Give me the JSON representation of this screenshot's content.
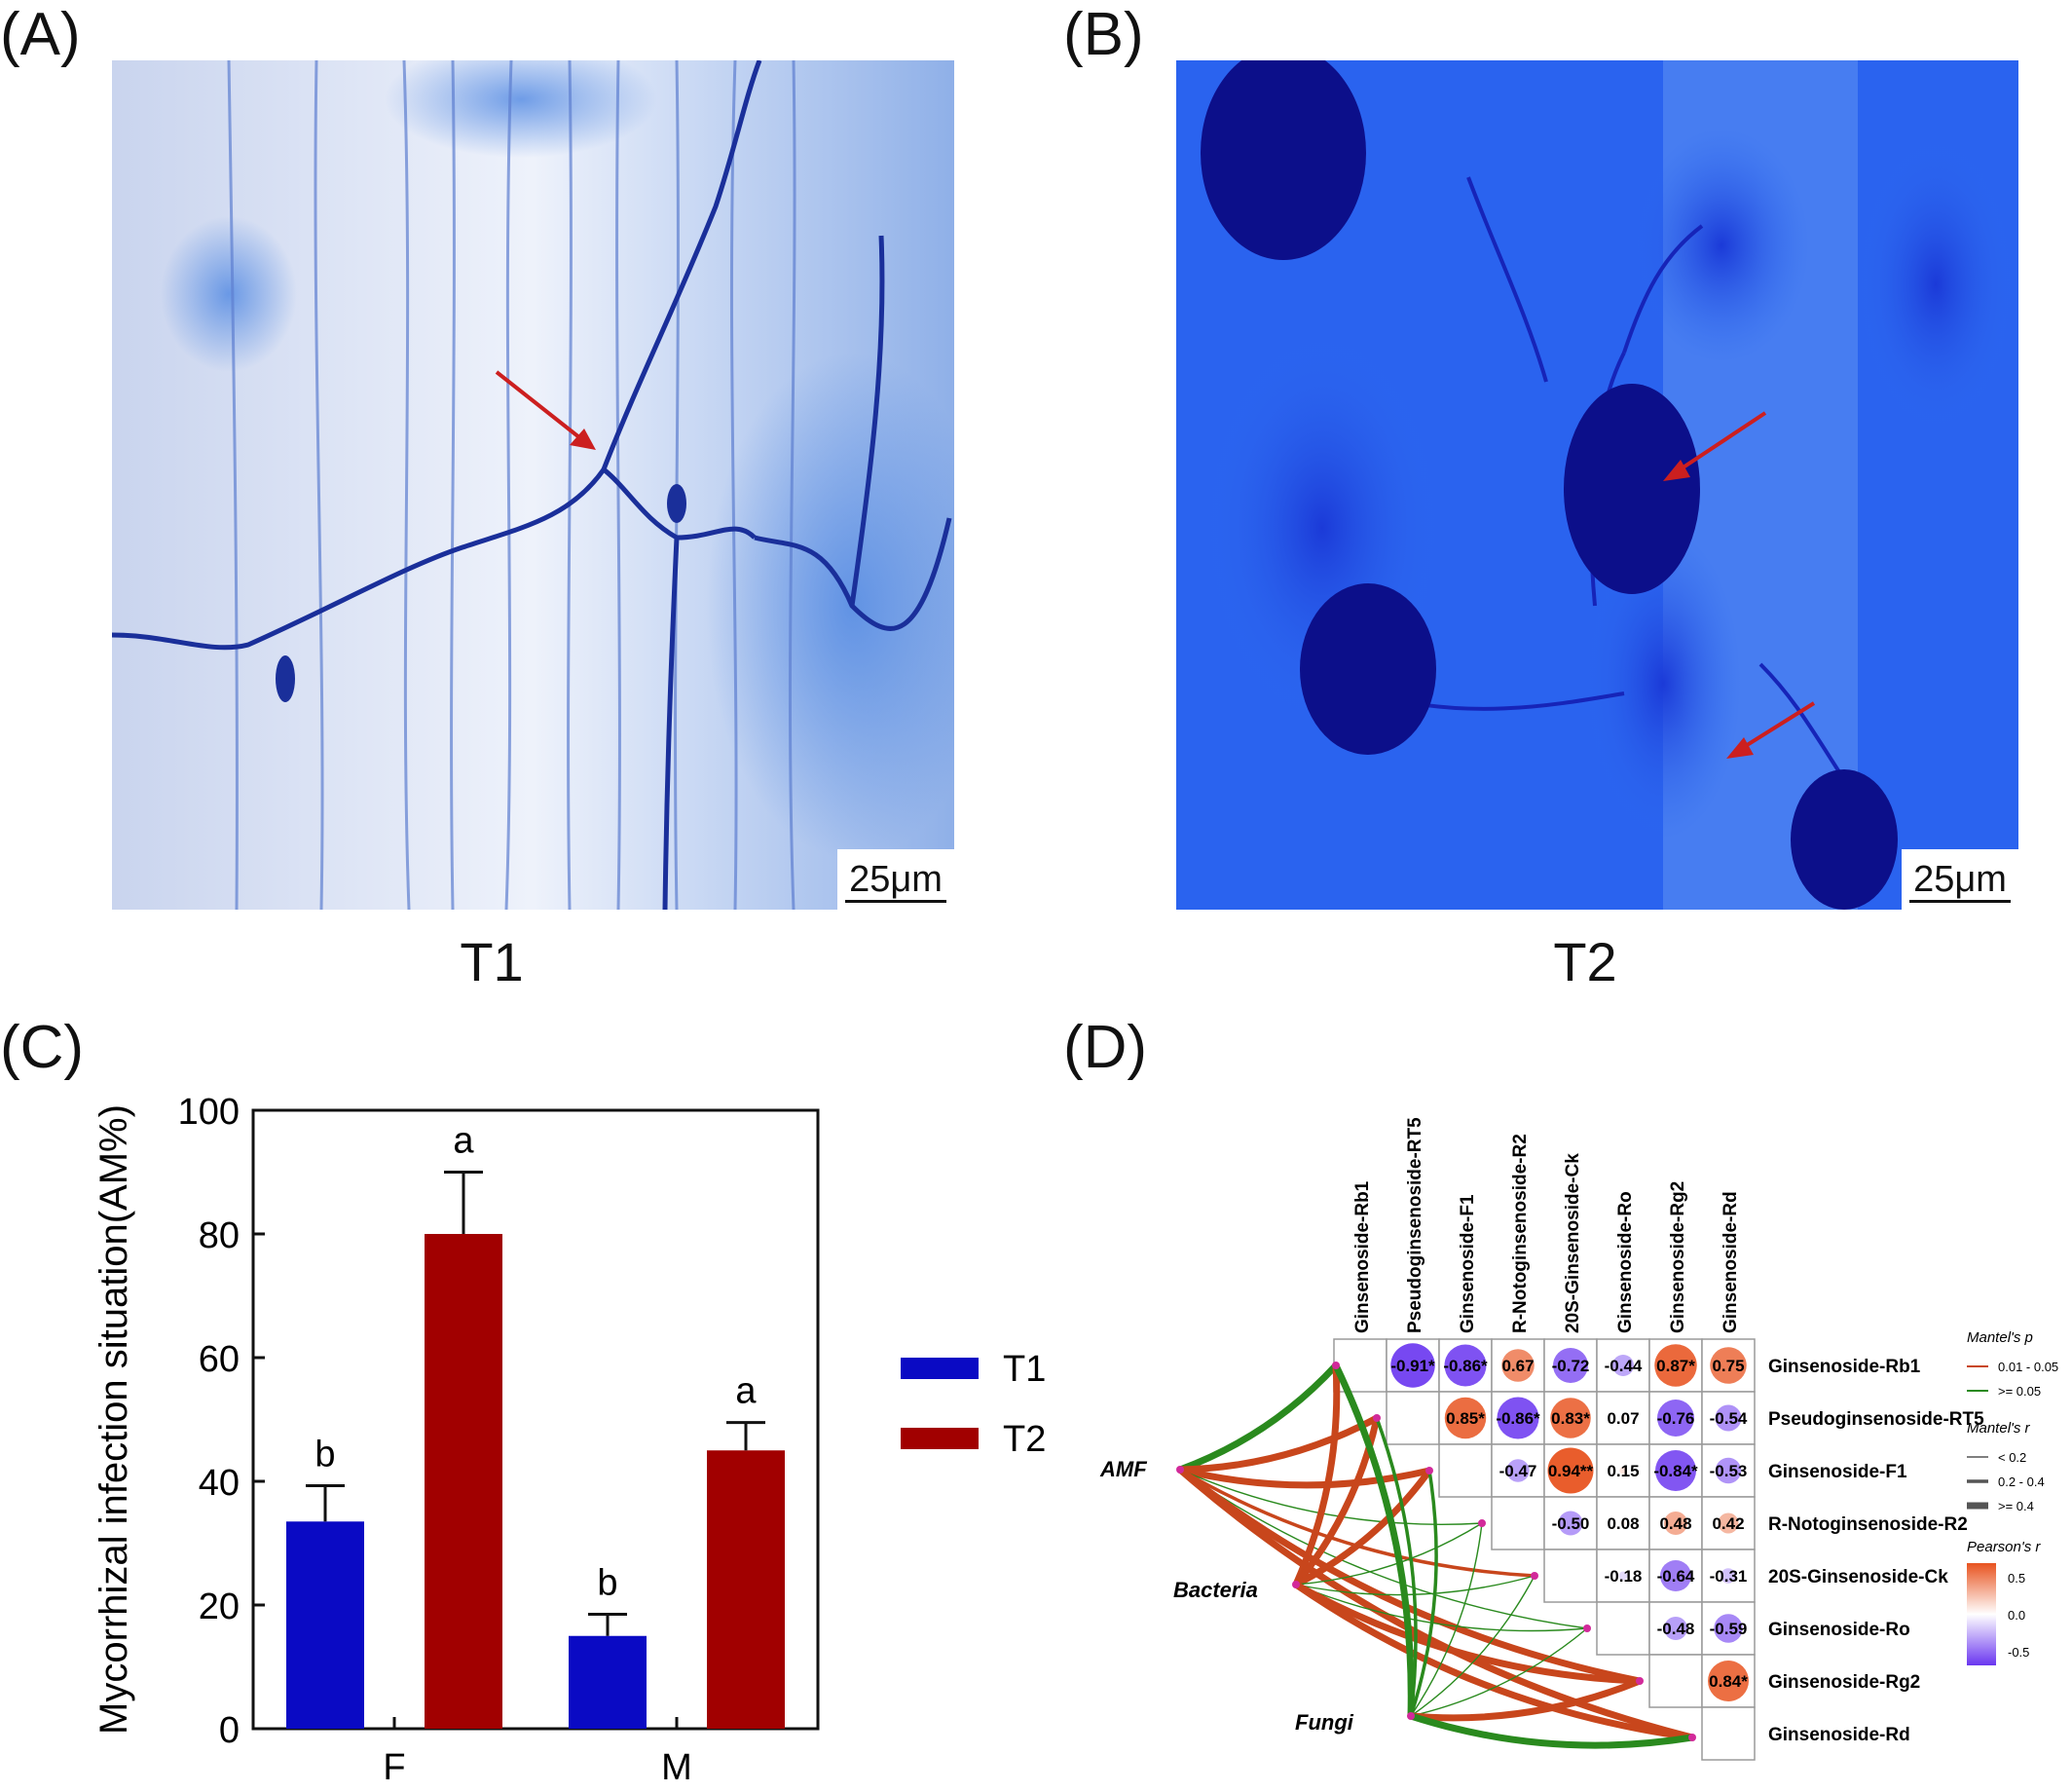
{
  "panels": {
    "a": {
      "letter": "(A)",
      "label": "T1",
      "scale": "25μm"
    },
    "b": {
      "letter": "(B)",
      "label": "T2",
      "scale": "25μm"
    },
    "c": {
      "letter": "(C)"
    },
    "d": {
      "letter": "(D)"
    }
  },
  "colors": {
    "t1": "#0a0ac4",
    "t2": "#a10000",
    "positive": "#e8531f",
    "negative": "#6a36f0",
    "mantel_sig": "#c8461c",
    "mantel_ns": "#2a8a1e"
  },
  "chart_data": [
    {
      "type": "bar",
      "categories": [
        "F",
        "M"
      ],
      "series": [
        {
          "name": "T1",
          "values": [
            33.5,
            15
          ],
          "errors": [
            5.8,
            3.5
          ],
          "letters": [
            "b",
            "b"
          ]
        },
        {
          "name": "T2",
          "values": [
            80,
            45
          ],
          "errors": [
            10,
            4.5
          ],
          "letters": [
            "a",
            "a"
          ]
        }
      ],
      "ylabel": "Mycorrhizal infection situation(AM%)",
      "ylim": [
        0,
        100
      ],
      "yticks": [
        0,
        20,
        40,
        60,
        80,
        100
      ],
      "legend": "right"
    },
    {
      "type": "heatmap",
      "variables": [
        "Ginsenoside-Rb1",
        "Pseudoginsenoside-RT5",
        "Ginsenoside-F1",
        "R-Notoginsenoside-R2",
        "20S-Ginsenoside-Ck",
        "Ginsenoside-Ro",
        "Ginsenoside-Rg2",
        "Ginsenoside-Rd"
      ],
      "correlations": [
        {
          "row": 0,
          "col": 1,
          "r": -0.91,
          "label": "-0.91*"
        },
        {
          "row": 0,
          "col": 2,
          "r": -0.86,
          "label": "-0.86*"
        },
        {
          "row": 0,
          "col": 3,
          "r": 0.67,
          "label": "0.67"
        },
        {
          "row": 0,
          "col": 4,
          "r": -0.72,
          "label": "-0.72"
        },
        {
          "row": 0,
          "col": 5,
          "r": -0.44,
          "label": "-0.44"
        },
        {
          "row": 0,
          "col": 6,
          "r": 0.87,
          "label": "0.87*"
        },
        {
          "row": 0,
          "col": 7,
          "r": 0.75,
          "label": "0.75"
        },
        {
          "row": 1,
          "col": 2,
          "r": 0.85,
          "label": "0.85*"
        },
        {
          "row": 1,
          "col": 3,
          "r": -0.86,
          "label": "-0.86*"
        },
        {
          "row": 1,
          "col": 4,
          "r": 0.83,
          "label": "0.83*"
        },
        {
          "row": 1,
          "col": 5,
          "r": 0.07,
          "label": "0.07"
        },
        {
          "row": 1,
          "col": 6,
          "r": -0.76,
          "label": "-0.76"
        },
        {
          "row": 1,
          "col": 7,
          "r": -0.54,
          "label": "-0.54"
        },
        {
          "row": 2,
          "col": 3,
          "r": -0.47,
          "label": "-0.47"
        },
        {
          "row": 2,
          "col": 4,
          "r": 0.94,
          "label": "0.94**"
        },
        {
          "row": 2,
          "col": 5,
          "r": 0.15,
          "label": "0.15"
        },
        {
          "row": 2,
          "col": 6,
          "r": -0.84,
          "label": "-0.84*"
        },
        {
          "row": 2,
          "col": 7,
          "r": -0.53,
          "label": "-0.53"
        },
        {
          "row": 3,
          "col": 4,
          "r": -0.5,
          "label": "-0.50"
        },
        {
          "row": 3,
          "col": 5,
          "r": 0.08,
          "label": "0.08"
        },
        {
          "row": 3,
          "col": 6,
          "r": 0.48,
          "label": "0.48"
        },
        {
          "row": 3,
          "col": 7,
          "r": 0.42,
          "label": "0.42"
        },
        {
          "row": 4,
          "col": 5,
          "r": -0.18,
          "label": "-0.18"
        },
        {
          "row": 4,
          "col": 6,
          "r": -0.64,
          "label": "-0.64"
        },
        {
          "row": 4,
          "col": 7,
          "r": -0.31,
          "label": "-0.31"
        },
        {
          "row": 5,
          "col": 6,
          "r": -0.48,
          "label": "-0.48"
        },
        {
          "row": 5,
          "col": 7,
          "r": -0.59,
          "label": "-0.59"
        },
        {
          "row": 6,
          "col": 7,
          "r": 0.84,
          "label": "0.84*"
        }
      ],
      "groups": [
        "AMF",
        "Bacteria",
        "Fungi"
      ],
      "mantel_links": [
        {
          "group": 0,
          "target": 0,
          "p": ">= 0.05",
          "r": ">= 0.4"
        },
        {
          "group": 0,
          "target": 1,
          "p": "0.01 - 0.05",
          "r": ">= 0.4"
        },
        {
          "group": 0,
          "target": 2,
          "p": "0.01 - 0.05",
          "r": ">= 0.4"
        },
        {
          "group": 0,
          "target": 3,
          "p": ">= 0.05",
          "r": "< 0.2"
        },
        {
          "group": 0,
          "target": 4,
          "p": "0.01 - 0.05",
          "r": "0.2 - 0.4"
        },
        {
          "group": 0,
          "target": 5,
          "p": ">= 0.05",
          "r": "< 0.2"
        },
        {
          "group": 0,
          "target": 6,
          "p": "0.01 - 0.05",
          "r": ">= 0.4"
        },
        {
          "group": 0,
          "target": 7,
          "p": "0.01 - 0.05",
          "r": ">= 0.4"
        },
        {
          "group": 1,
          "target": 0,
          "p": "0.01 - 0.05",
          "r": ">= 0.4"
        },
        {
          "group": 1,
          "target": 1,
          "p": "0.01 - 0.05",
          "r": ">= 0.4"
        },
        {
          "group": 1,
          "target": 2,
          "p": "0.01 - 0.05",
          "r": ">= 0.4"
        },
        {
          "group": 1,
          "target": 3,
          "p": ">= 0.05",
          "r": "< 0.2"
        },
        {
          "group": 1,
          "target": 4,
          "p": ">= 0.05",
          "r": "< 0.2"
        },
        {
          "group": 1,
          "target": 5,
          "p": ">= 0.05",
          "r": "< 0.2"
        },
        {
          "group": 1,
          "target": 6,
          "p": "0.01 - 0.05",
          "r": ">= 0.4"
        },
        {
          "group": 1,
          "target": 7,
          "p": "0.01 - 0.05",
          "r": ">= 0.4"
        },
        {
          "group": 2,
          "target": 0,
          "p": ">= 0.05",
          "r": ">= 0.4"
        },
        {
          "group": 2,
          "target": 1,
          "p": ">= 0.05",
          "r": "0.2 - 0.4"
        },
        {
          "group": 2,
          "target": 2,
          "p": ">= 0.05",
          "r": "0.2 - 0.4"
        },
        {
          "group": 2,
          "target": 3,
          "p": ">= 0.05",
          "r": "< 0.2"
        },
        {
          "group": 2,
          "target": 4,
          "p": ">= 0.05",
          "r": "< 0.2"
        },
        {
          "group": 2,
          "target": 5,
          "p": ">= 0.05",
          "r": "< 0.2"
        },
        {
          "group": 2,
          "target": 6,
          "p": "0.01 - 0.05",
          "r": ">= 0.4"
        },
        {
          "group": 2,
          "target": 7,
          "p": ">= 0.05",
          "r": ">= 0.4"
        }
      ],
      "legend": {
        "mantel_p_title": "Mantel's p",
        "mantel_p_items": [
          "0.01 - 0.05",
          ">= 0.05"
        ],
        "mantel_r_title": "Mantel's r",
        "mantel_r_items": [
          "< 0.2",
          "0.2 - 0.4",
          ">= 0.4"
        ],
        "pearson_title": "Pearson's r",
        "pearson_ticks": [
          "0.5",
          "0.0",
          "-0.5"
        ]
      }
    }
  ]
}
